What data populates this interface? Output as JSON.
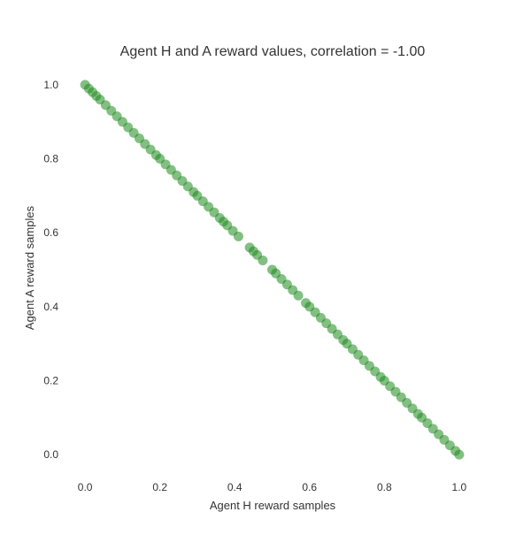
{
  "chart_data": {
    "type": "scatter",
    "title": "Agent H and A reward values, correlation = -1.00",
    "xlabel": "Agent H reward samples",
    "ylabel": "Agent A reward samples",
    "xlim": [
      -0.05,
      1.05
    ],
    "ylim": [
      -0.05,
      1.05
    ],
    "xticks": [
      "0.0",
      "0.2",
      "0.4",
      "0.6",
      "0.8",
      "1.0"
    ],
    "yticks": [
      "0.0",
      "0.2",
      "0.4",
      "0.6",
      "0.8",
      "1.0"
    ],
    "grid": false,
    "legend": "none",
    "marker_color": "#1e8a1e",
    "series": [
      {
        "points": [
          [
            0.0,
            1.0
          ],
          [
            0.01,
            0.99
          ],
          [
            0.02,
            0.98
          ],
          [
            0.03,
            0.97
          ],
          [
            0.04,
            0.96
          ],
          [
            0.055,
            0.945
          ],
          [
            0.07,
            0.93
          ],
          [
            0.085,
            0.915
          ],
          [
            0.1,
            0.9
          ],
          [
            0.115,
            0.885
          ],
          [
            0.13,
            0.87
          ],
          [
            0.145,
            0.855
          ],
          [
            0.16,
            0.84
          ],
          [
            0.175,
            0.825
          ],
          [
            0.19,
            0.81
          ],
          [
            0.2,
            0.8
          ],
          [
            0.215,
            0.785
          ],
          [
            0.23,
            0.77
          ],
          [
            0.245,
            0.755
          ],
          [
            0.26,
            0.74
          ],
          [
            0.275,
            0.725
          ],
          [
            0.29,
            0.71
          ],
          [
            0.3,
            0.7
          ],
          [
            0.315,
            0.685
          ],
          [
            0.33,
            0.67
          ],
          [
            0.345,
            0.655
          ],
          [
            0.36,
            0.64
          ],
          [
            0.37,
            0.63
          ],
          [
            0.38,
            0.62
          ],
          [
            0.395,
            0.605
          ],
          [
            0.41,
            0.59
          ],
          [
            0.44,
            0.56
          ],
          [
            0.45,
            0.55
          ],
          [
            0.46,
            0.54
          ],
          [
            0.475,
            0.525
          ],
          [
            0.5,
            0.5
          ],
          [
            0.51,
            0.49
          ],
          [
            0.525,
            0.475
          ],
          [
            0.54,
            0.46
          ],
          [
            0.555,
            0.445
          ],
          [
            0.57,
            0.43
          ],
          [
            0.59,
            0.41
          ],
          [
            0.6,
            0.4
          ],
          [
            0.615,
            0.385
          ],
          [
            0.63,
            0.37
          ],
          [
            0.645,
            0.355
          ],
          [
            0.66,
            0.34
          ],
          [
            0.675,
            0.325
          ],
          [
            0.69,
            0.31
          ],
          [
            0.7,
            0.3
          ],
          [
            0.715,
            0.285
          ],
          [
            0.73,
            0.27
          ],
          [
            0.745,
            0.255
          ],
          [
            0.76,
            0.24
          ],
          [
            0.775,
            0.225
          ],
          [
            0.79,
            0.21
          ],
          [
            0.8,
            0.2
          ],
          [
            0.815,
            0.185
          ],
          [
            0.83,
            0.17
          ],
          [
            0.845,
            0.155
          ],
          [
            0.86,
            0.14
          ],
          [
            0.875,
            0.125
          ],
          [
            0.89,
            0.11
          ],
          [
            0.9,
            0.1
          ],
          [
            0.915,
            0.085
          ],
          [
            0.93,
            0.07
          ],
          [
            0.945,
            0.055
          ],
          [
            0.96,
            0.04
          ],
          [
            0.975,
            0.025
          ],
          [
            0.99,
            0.01
          ],
          [
            1.0,
            0.0
          ]
        ]
      }
    ]
  }
}
